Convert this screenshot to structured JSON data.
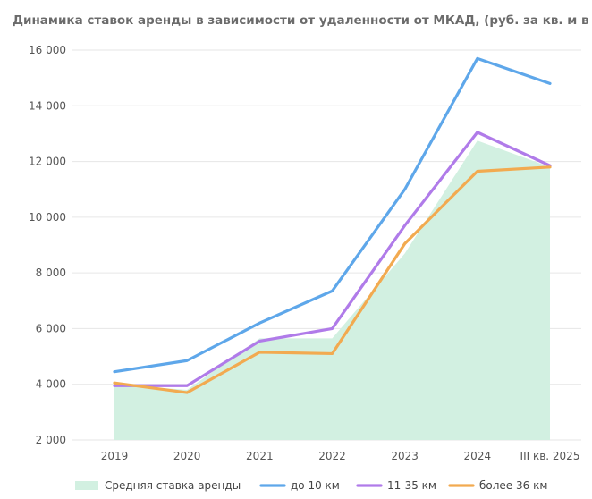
{
  "chart_data": {
    "type": "line",
    "title": "Динамика ставок аренды в зависимости от удаленности от МКАД, (руб. за кв. м в год)",
    "categories": [
      "2019",
      "2020",
      "2021",
      "2022",
      "2023",
      "2024",
      "III кв. 2025"
    ],
    "ylim": [
      2000,
      16000
    ],
    "yticks": [
      {
        "value": 2000,
        "label": "2 000"
      },
      {
        "value": 4000,
        "label": "4 000"
      },
      {
        "value": 6000,
        "label": "6 000"
      },
      {
        "value": 8000,
        "label": "8 000"
      },
      {
        "value": 10000,
        "label": "10 000"
      },
      {
        "value": 12000,
        "label": "12 000"
      },
      {
        "value": 14000,
        "label": "14 000"
      },
      {
        "value": 16000,
        "label": "16 000"
      }
    ],
    "grid": true,
    "legend_position": "bottom",
    "area": {
      "name": "Средняя ставка аренды",
      "color": "#d2f0e1",
      "values": [
        4000,
        3800,
        5650,
        5650,
        8700,
        12750,
        11800
      ]
    },
    "series": [
      {
        "name": "до 10 км",
        "color": "#5ea7ea",
        "values": [
          4450,
          4850,
          6200,
          7350,
          11000,
          15700,
          14800
        ]
      },
      {
        "name": "11-35 км",
        "color": "#b07be9",
        "values": [
          3950,
          3950,
          5550,
          6000,
          9700,
          13050,
          11850
        ]
      },
      {
        "name": "более 36 км",
        "color": "#f2aa50",
        "values": [
          4050,
          3700,
          5150,
          5100,
          9050,
          11650,
          11800
        ]
      }
    ]
  }
}
